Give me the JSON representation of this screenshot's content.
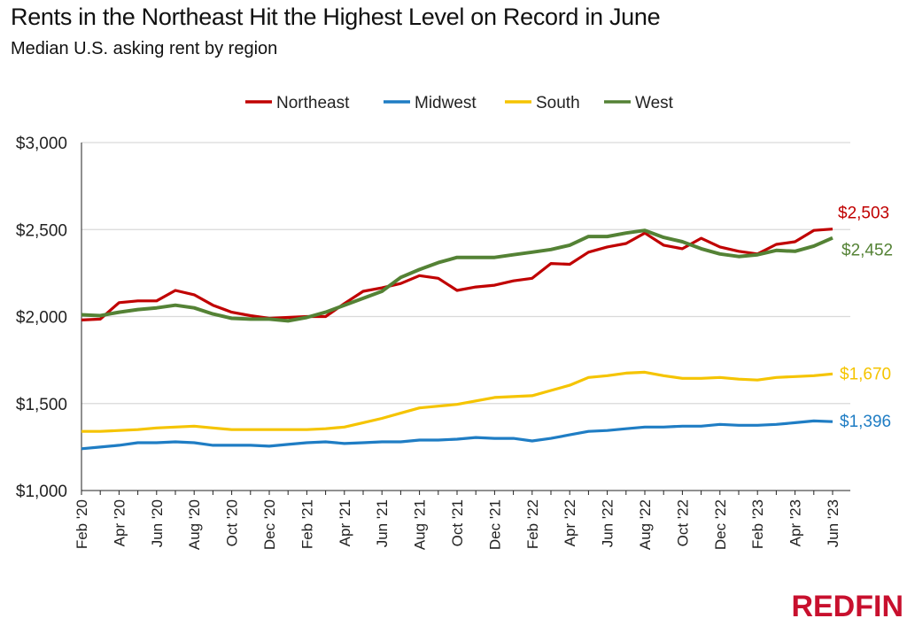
{
  "title": "Rents in the Northeast Hit the Highest Level on Record in June",
  "subtitle": "Median U.S. asking rent by region",
  "logo": "REDFIN",
  "chart_data": {
    "type": "line",
    "title": "Rents in the Northeast Hit the Highest Level on Record in June",
    "subtitle": "Median U.S. asking rent by region",
    "xlabel": "",
    "ylabel": "",
    "ylim": [
      1000,
      3000
    ],
    "yticks": [
      1000,
      1500,
      2000,
      2500,
      3000
    ],
    "ytick_labels": [
      "$1,000",
      "$1,500",
      "$2,000",
      "$2,500",
      "$3,000"
    ],
    "grid": "horizontal",
    "legend": "top-center",
    "x": [
      "Feb '20",
      "Mar '20",
      "Apr '20",
      "May '20",
      "Jun '20",
      "Jul '20",
      "Aug '20",
      "Sep '20",
      "Oct '20",
      "Nov '20",
      "Dec '20",
      "Jan '21",
      "Feb '21",
      "Mar '21",
      "Apr '21",
      "May '21",
      "Jun '21",
      "Jul '21",
      "Aug '21",
      "Sep '21",
      "Oct '21",
      "Nov '21",
      "Dec '21",
      "Jan '22",
      "Feb '22",
      "Mar '22",
      "Apr '22",
      "May '22",
      "Jun '22",
      "Jul '22",
      "Aug '22",
      "Sep '22",
      "Oct '22",
      "Nov '22",
      "Dec '22",
      "Jan '23",
      "Feb '23",
      "Mar '23",
      "Apr '23",
      "May '23",
      "Jun '23"
    ],
    "xtick_labels": [
      "Feb '20",
      "Apr '20",
      "Jun '20",
      "Aug '20",
      "Oct '20",
      "Dec '20",
      "Feb '21",
      "Apr '21",
      "Jun '21",
      "Aug '21",
      "Oct '21",
      "Dec '21",
      "Feb '22",
      "Apr '22",
      "Jun '22",
      "Aug '22",
      "Oct '22",
      "Dec '22",
      "Feb '23",
      "Apr '23",
      "Jun '23"
    ],
    "series": [
      {
        "name": "Northeast",
        "color": "#c00000",
        "end_label": "$2,503",
        "values": [
          1980,
          1985,
          2080,
          2090,
          2090,
          2150,
          2125,
          2065,
          2025,
          2005,
          1990,
          1995,
          2000,
          2000,
          2075,
          2145,
          2165,
          2190,
          2235,
          2220,
          2150,
          2170,
          2180,
          2205,
          2220,
          2305,
          2300,
          2370,
          2400,
          2420,
          2480,
          2410,
          2390,
          2450,
          2400,
          2375,
          2360,
          2415,
          2430,
          2495,
          2503
        ]
      },
      {
        "name": "Midwest",
        "color": "#1f7dc4",
        "end_label": "$1,396",
        "values": [
          1240,
          1250,
          1260,
          1275,
          1275,
          1280,
          1275,
          1260,
          1260,
          1260,
          1255,
          1265,
          1275,
          1280,
          1270,
          1275,
          1280,
          1280,
          1290,
          1290,
          1295,
          1305,
          1300,
          1300,
          1285,
          1300,
          1320,
          1340,
          1345,
          1355,
          1365,
          1365,
          1370,
          1370,
          1380,
          1375,
          1375,
          1380,
          1390,
          1400,
          1396
        ]
      },
      {
        "name": "South",
        "color": "#f5c400",
        "end_label": "$1,670",
        "values": [
          1340,
          1340,
          1345,
          1350,
          1360,
          1365,
          1370,
          1360,
          1350,
          1350,
          1350,
          1350,
          1350,
          1355,
          1365,
          1390,
          1415,
          1445,
          1475,
          1485,
          1495,
          1515,
          1535,
          1540,
          1545,
          1575,
          1605,
          1650,
          1660,
          1675,
          1680,
          1660,
          1645,
          1645,
          1650,
          1640,
          1635,
          1650,
          1655,
          1660,
          1670
        ]
      },
      {
        "name": "West",
        "color": "#548235",
        "end_label": "$2,452",
        "values": [
          2010,
          2005,
          2025,
          2040,
          2050,
          2065,
          2050,
          2015,
          1990,
          1985,
          1985,
          1975,
          1995,
          2025,
          2065,
          2105,
          2145,
          2225,
          2270,
          2310,
          2340,
          2340,
          2340,
          2355,
          2370,
          2385,
          2410,
          2460,
          2460,
          2480,
          2495,
          2455,
          2430,
          2390,
          2360,
          2345,
          2355,
          2380,
          2375,
          2405,
          2452
        ]
      }
    ]
  }
}
